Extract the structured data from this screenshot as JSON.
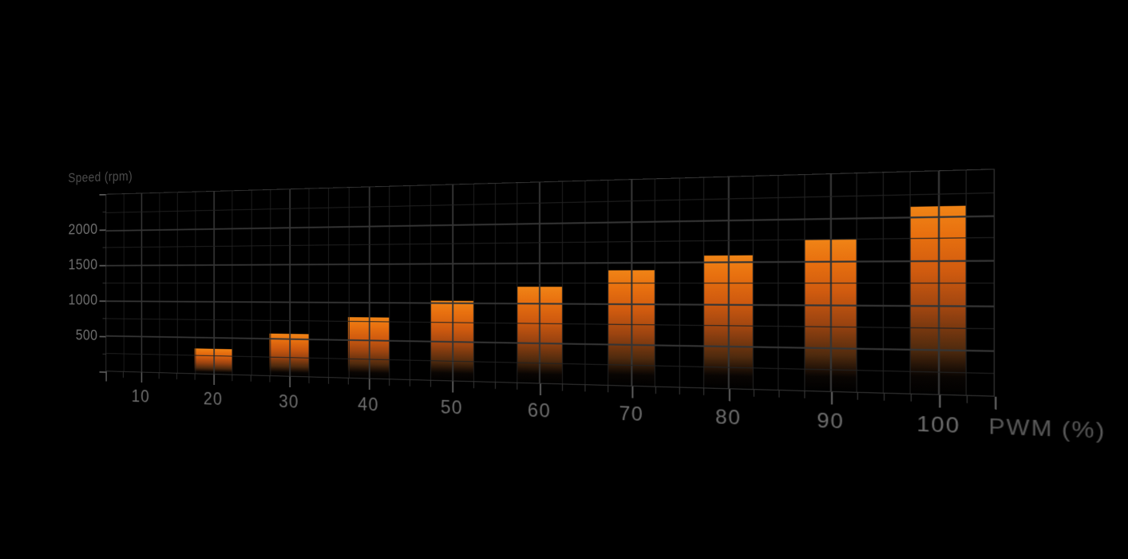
{
  "chart_data": {
    "type": "bar",
    "ylabel": "Speed (rpm)",
    "xlabel": "PWM (%)",
    "categories": [
      20,
      30,
      40,
      50,
      60,
      70,
      80,
      90,
      100
    ],
    "values": [
      350,
      575,
      800,
      1025,
      1200,
      1400,
      1575,
      1750,
      2100
    ],
    "bar_width_pwm": 5,
    "x_axis": {
      "min": 5,
      "max": 105,
      "minor_step": 2.5,
      "major_step": 10,
      "ticks": [
        10,
        20,
        30,
        40,
        50,
        60,
        70,
        80,
        90,
        100
      ]
    },
    "y_axis": {
      "min": 0,
      "max": 2500,
      "minor_step": 250,
      "major_step": 500,
      "ticks": [
        500,
        1000,
        1500,
        2000
      ]
    },
    "grid": true,
    "legend": false,
    "perspective": "plane tilted, right side enlarged",
    "colors": {
      "background": "#000000",
      "grid_minor": "#212121",
      "grid_major": "#343434",
      "tick_label": "#6e6e6e",
      "axis_title": "#4c4c4c",
      "axis_title_x": "#5a5a5a",
      "bar_c0": "#f08416",
      "bar_c1": "#e8700f",
      "bar_c2": "#cf5a0f",
      "bar_c3": "#9c4410",
      "bar_c4": "#4f2a0e"
    }
  }
}
